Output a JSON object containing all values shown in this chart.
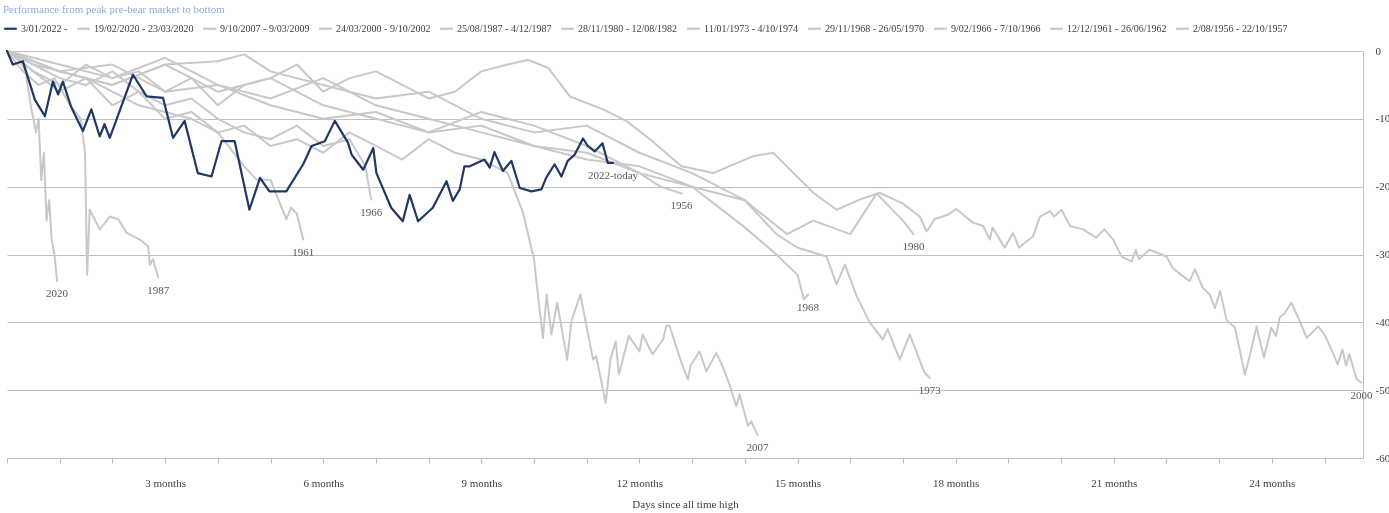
{
  "chart_data": {
    "type": "line",
    "title": "Performance from peak pre-bear market to bottom",
    "xlabel": "Days since all time high",
    "xlim": [
      0,
      25.73
    ],
    "xticks": [
      {
        "value": 0,
        "label": null
      },
      {
        "value": 1,
        "label": null
      },
      {
        "value": 2,
        "label": null
      },
      {
        "value": 3,
        "label": "3 months"
      },
      {
        "value": 4,
        "label": null
      },
      {
        "value": 5,
        "label": null
      },
      {
        "value": 6,
        "label": "6 months"
      },
      {
        "value": 7,
        "label": null
      },
      {
        "value": 8,
        "label": null
      },
      {
        "value": 9,
        "label": "9 months"
      },
      {
        "value": 10,
        "label": null
      },
      {
        "value": 11,
        "label": null
      },
      {
        "value": 12,
        "label": "12 months"
      },
      {
        "value": 13,
        "label": null
      },
      {
        "value": 14,
        "label": null
      },
      {
        "value": 15,
        "label": "15 months"
      },
      {
        "value": 16,
        "label": null
      },
      {
        "value": 17,
        "label": null
      },
      {
        "value": 18,
        "label": "18 months"
      },
      {
        "value": 19,
        "label": null
      },
      {
        "value": 20,
        "label": null
      },
      {
        "value": 21,
        "label": "21 months"
      },
      {
        "value": 22,
        "label": null
      },
      {
        "value": 23,
        "label": null
      },
      {
        "value": 24,
        "label": "24 months"
      },
      {
        "value": 25,
        "label": null
      }
    ],
    "ylim": [
      -60,
      0
    ],
    "yticks": [
      0,
      -10,
      -20,
      -30,
      -40,
      -50,
      -60
    ],
    "grid": "y",
    "legend": "top left",
    "series": [
      {
        "name": "3/01/2022 -",
        "color": "#1f3864",
        "x": [
          0,
          0.11,
          0.3,
          0.53,
          0.72,
          0.87,
          0.97,
          1.06,
          1.22,
          1.44,
          1.6,
          1.76,
          1.85,
          1.95,
          2.39,
          2.65,
          2.96,
          3.15,
          3.37,
          3.62,
          3.88,
          4.07,
          4.32,
          4.6,
          4.8,
          4.98,
          5.3,
          5.62,
          5.78,
          6.03,
          6.22,
          6.47,
          6.54,
          6.76,
          6.95,
          7.01,
          7.29,
          7.51,
          7.64,
          7.8,
          8.08,
          8.34,
          8.46,
          8.59,
          8.68,
          8.78,
          9.06,
          9.16,
          9.25,
          9.41,
          9.57,
          9.73,
          9.95,
          10.14,
          10.23,
          10.39,
          10.52,
          10.64,
          10.77,
          10.93,
          11.02,
          11.15,
          11.3,
          11.4,
          11.5
        ],
        "values": [
          0,
          -2.0,
          -1.5,
          -7.2,
          -9.6,
          -4.5,
          -6.4,
          -4.5,
          -8.3,
          -11.8,
          -8.6,
          -12.6,
          -10.8,
          -12.8,
          -3.5,
          -6.7,
          -6.9,
          -12.8,
          -10.3,
          -18.0,
          -18.5,
          -13.3,
          -13.3,
          -23.4,
          -18.7,
          -20.7,
          -20.7,
          -16.7,
          -14.0,
          -13.3,
          -10.3,
          -13.5,
          -15.3,
          -17.5,
          -14.3,
          -18.0,
          -23.1,
          -25.1,
          -21.2,
          -25.1,
          -23.1,
          -19.2,
          -22.1,
          -20.4,
          -17.0,
          -17.0,
          -16.0,
          -17.2,
          -14.9,
          -17.7,
          -16.2,
          -20.2,
          -20.7,
          -20.4,
          -18.7,
          -16.7,
          -18.5,
          -16.2,
          -15.3,
          -12.9,
          -14.0,
          -14.8,
          -13.6,
          -16.5,
          -16.5
        ]
      },
      {
        "name": "19/02/2020 - 23/03/2020",
        "color": "#c8c8c8",
        "x": [
          0,
          0.2,
          0.35,
          0.45,
          0.55,
          0.6,
          0.65,
          0.7,
          0.75,
          0.8,
          0.85,
          0.9,
          0.95
        ],
        "values": [
          0,
          -1,
          -3,
          -8,
          -12,
          -10,
          -19,
          -15,
          -25,
          -22,
          -28,
          -30,
          -33.9
        ]
      },
      {
        "name": "9/10/2007 - 9/03/2009",
        "color": "#c8c8c8",
        "x": [
          0,
          0.5,
          1,
          1.5,
          2,
          2.5,
          3,
          3.5,
          4,
          4.5,
          5,
          5.5,
          6,
          6.5,
          7,
          7.5,
          8,
          8.5,
          9,
          9.5,
          9.79,
          10.0,
          10.08,
          10.17,
          10.24,
          10.33,
          10.44,
          10.63,
          10.71,
          10.88,
          11.12,
          11.18,
          11.36,
          11.45,
          11.55,
          11.61,
          11.8,
          12.0,
          12.06,
          12.25,
          12.45,
          12.51,
          12.57,
          12.8,
          12.92,
          12.97,
          13.14,
          13.27,
          13.46,
          13.59,
          13.72,
          13.84,
          13.9,
          14.06,
          14.12,
          14.24
        ],
        "values": [
          0,
          -3,
          -6,
          -4,
          -8,
          -6,
          -10,
          -9,
          -12,
          -11,
          -14,
          -13,
          -15,
          -12,
          -14,
          -16,
          -13,
          -15,
          -16,
          -18,
          -23.8,
          -30.7,
          -36.4,
          -42.3,
          -35.9,
          -41.8,
          -37.1,
          -45.5,
          -39.8,
          -35.9,
          -45.5,
          -45,
          -51.9,
          -45.5,
          -42.8,
          -47.7,
          -42.0,
          -44.3,
          -41.8,
          -44.7,
          -42.5,
          -40.5,
          -40.5,
          -46.0,
          -48.4,
          -46.4,
          -44.3,
          -47.2,
          -44.5,
          -46.7,
          -49.4,
          -52.4,
          -50.6,
          -55.3,
          -54.6,
          -56.6
        ]
      },
      {
        "name": "24/03/2000 - 9/10/2002",
        "color": "#c8c8c8",
        "x": [
          0,
          0.5,
          1,
          1.5,
          2,
          2.5,
          3,
          3.5,
          4,
          4.5,
          5,
          5.5,
          6,
          6.5,
          7,
          7.5,
          8,
          8.5,
          9,
          9.5,
          9.89,
          10.27,
          10.68,
          11.31,
          11.75,
          12.2,
          12.8,
          13.4,
          14.16,
          14.54,
          15.3,
          15.74,
          16.18,
          16.56,
          17.0,
          17.32,
          17.45,
          17.6,
          17.86,
          18.01,
          18.33,
          18.52,
          18.65,
          18.7,
          18.93,
          19.09,
          19.2,
          19.47,
          19.6,
          19.79,
          19.87,
          20.01,
          20.17,
          20.42,
          20.67,
          20.82,
          20.99,
          21.15,
          21.34,
          21.42,
          21.48,
          21.68,
          22.0,
          22.12,
          22.28,
          22.44,
          22.54,
          22.69,
          22.82,
          22.92,
          23.02,
          23.14,
          23.3,
          23.49,
          23.58,
          23.71,
          23.85,
          23.99,
          24.08,
          24.15,
          24.24,
          24.37,
          24.53,
          24.66,
          24.88,
          25.0,
          25.16,
          25.25,
          25.34,
          25.41,
          25.47,
          25.61,
          25.7
        ],
        "values": [
          0,
          -3,
          -5,
          -2,
          -4,
          -3,
          -6,
          -4,
          -8,
          -5,
          -4,
          -2,
          -6,
          -4,
          -3,
          -5,
          -7,
          -6,
          -3,
          -2,
          -1.3,
          -2.5,
          -6.7,
          -8.6,
          -10.3,
          -13,
          -17,
          -18,
          -15.5,
          -15,
          -20.9,
          -23.4,
          -21.9,
          -20.9,
          -22.5,
          -24.4,
          -26.6,
          -24.8,
          -24.1,
          -23.3,
          -25.3,
          -25.8,
          -27.8,
          -26,
          -29.0,
          -26.8,
          -29,
          -27.3,
          -24.4,
          -23.6,
          -24.4,
          -23.4,
          -25.8,
          -26.3,
          -27.5,
          -26.3,
          -27.8,
          -30.3,
          -31.0,
          -29.3,
          -30.7,
          -29.3,
          -30.3,
          -32.0,
          -33.0,
          -33.9,
          -32.2,
          -34.9,
          -35.9,
          -37.9,
          -35.4,
          -39.6,
          -40.8,
          -47.7,
          -45.0,
          -40.6,
          -45.2,
          -40.8,
          -42.0,
          -39.3,
          -38.7,
          -37.1,
          -39.8,
          -42.3,
          -40.6,
          -41.8,
          -44.5,
          -46.2,
          -44.0,
          -46.4,
          -44.7,
          -48.4,
          -48.9
        ]
      },
      {
        "name": "25/08/1987 - 4/12/1987",
        "color": "#c8c8c8",
        "x": [
          0,
          0.3,
          0.6,
          0.9,
          1.2,
          1.4,
          1.48,
          1.52,
          1.57,
          1.76,
          1.95,
          2.11,
          2.27,
          2.52,
          2.68,
          2.71,
          2.77,
          2.87
        ],
        "values": [
          0,
          -3,
          -5,
          -4,
          -8,
          -10,
          -15,
          -33,
          -23.4,
          -26.3,
          -24.4,
          -24.8,
          -26.8,
          -27.8,
          -28.8,
          -31.5,
          -30.7,
          -33.4
        ]
      },
      {
        "name": "28/11/1980 - 12/08/1982",
        "color": "#c8c8c8",
        "x": [
          0,
          1,
          2,
          3,
          4,
          5,
          6,
          7,
          8,
          9,
          10,
          11,
          12,
          13,
          14,
          14.8,
          15.3,
          16,
          16.5,
          17.0,
          17.2
        ],
        "values": [
          0,
          -2,
          -4,
          -1,
          -5,
          -7,
          -4,
          -8,
          -10,
          -12,
          -14,
          -15,
          -18,
          -20,
          -22,
          -27,
          -25,
          -27,
          -21,
          -25,
          -27
        ]
      },
      {
        "name": "11/01/1973 - 4/10/1974",
        "color": "#c8c8c8",
        "x": [
          0,
          1,
          2,
          3,
          4,
          4.5,
          5,
          6,
          7,
          8,
          9,
          10,
          11,
          12,
          13,
          14,
          14.6,
          15.0,
          15.55,
          15.74,
          15.9,
          16.12,
          16.37,
          16.62,
          16.71,
          16.94,
          17.13,
          17.41,
          17.51
        ],
        "values": [
          0,
          -3,
          -5,
          -2,
          -1.5,
          -0.5,
          -3,
          -5,
          -7,
          -6,
          -10,
          -12,
          -11,
          -15,
          -18,
          -22,
          -27,
          -29,
          -30.3,
          -34.4,
          -31.5,
          -36.1,
          -40.0,
          -42.5,
          -41,
          -45.5,
          -41.8,
          -47.4,
          -48.2
        ]
      },
      {
        "name": "29/11/1968 - 26/05/1970",
        "color": "#c8c8c8",
        "x": [
          0,
          1,
          2,
          3,
          4,
          5,
          6,
          7,
          8,
          9,
          10,
          11,
          12,
          13,
          14,
          14.6,
          15.0,
          15.12,
          15.2
        ],
        "values": [
          0,
          -3,
          -2,
          -6,
          -5,
          -8,
          -10,
          -9,
          -12,
          -11,
          -14,
          -16,
          -17,
          -20,
          -26,
          -30,
          -33,
          -36.6,
          -35.9
        ]
      },
      {
        "name": "9/02/1966 - 7/10/1966",
        "color": "#c8c8c8",
        "x": [
          0,
          0.5,
          1,
          1.5,
          2,
          2.5,
          3,
          3.5,
          4,
          4.5,
          5,
          5.5,
          6,
          6.5,
          6.8,
          6.91
        ],
        "values": [
          0,
          -2,
          -4,
          -5,
          -3,
          -6,
          -8,
          -7,
          -10,
          -12,
          -13,
          -11,
          -14,
          -13,
          -17,
          -21.9
        ]
      },
      {
        "name": "12/12/1961 - 26/06/1962",
        "color": "#c8c8c8",
        "x": [
          0,
          0.5,
          1,
          1.5,
          2,
          2.5,
          3,
          3.5,
          4,
          4.5,
          4.73,
          5.0,
          5.3,
          5.39,
          5.5,
          5.62
        ],
        "values": [
          0,
          -2,
          -3,
          -4,
          -6,
          -8,
          -9,
          -10,
          -12,
          -17,
          -18.9,
          -19,
          -24.8,
          -23.1,
          -24,
          -27.8
        ]
      },
      {
        "name": "2/08/1956 - 22/10/1957",
        "color": "#c8c8c8",
        "x": [
          0,
          1,
          2,
          3,
          4,
          5,
          6,
          7,
          8,
          9,
          10,
          11,
          12,
          12.4,
          12.8
        ],
        "values": [
          0,
          -3,
          -5,
          -2,
          -6,
          -4,
          -8,
          -10,
          -12,
          -9,
          -11,
          -14,
          -18,
          -20,
          -21
        ]
      }
    ],
    "annotations": [
      {
        "text": "2020",
        "x": 0.95,
        "y": -33.9
      },
      {
        "text": "1987",
        "x": 2.87,
        "y": -33.4
      },
      {
        "text": "1961",
        "x": 5.62,
        "y": -27.8
      },
      {
        "text": "1966",
        "x": 6.91,
        "y": -21.9
      },
      {
        "text": "2022-today",
        "x": 11.5,
        "y": -16.5
      },
      {
        "text": "1956",
        "x": 12.8,
        "y": -21
      },
      {
        "text": "1968",
        "x": 15.2,
        "y": -35.9
      },
      {
        "text": "2007",
        "x": 14.24,
        "y": -56.6
      },
      {
        "text": "1980",
        "x": 17.2,
        "y": -27
      },
      {
        "text": "1973",
        "x": 17.51,
        "y": -48.2
      },
      {
        "text": "2000",
        "x": 25.7,
        "y": -48.9
      }
    ]
  }
}
